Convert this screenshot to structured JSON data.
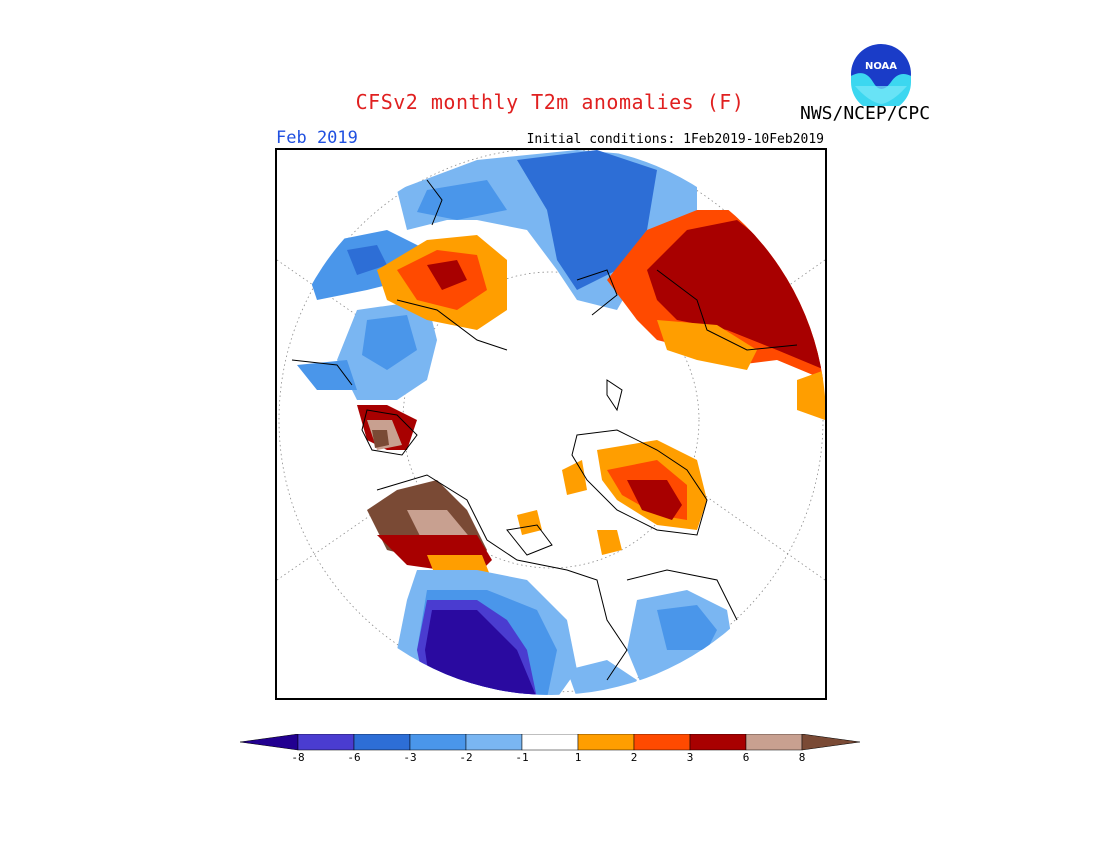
{
  "header": {
    "title": "CFSv2 monthly T2m anomalies (F)",
    "agency": "NWS/NCEP/CPC",
    "period": "Feb 2019",
    "initial_conditions": "Initial conditions: 1Feb2019-10Feb2019",
    "logo_text": "NOAA"
  },
  "colors": {
    "title": "#e02020",
    "period": "#2050e0",
    "below": [
      "#2a0aa0",
      "#4a3cd0",
      "#2d6ed6",
      "#4a96ea",
      "#7ab6f2"
    ],
    "neutral": "#ffffff",
    "above": [
      "#ff9e00",
      "#ff4a00",
      "#a80000",
      "#c8a090"
    ],
    "extreme_high": "#7a4a35",
    "extreme_low": "#220090"
  },
  "legend": {
    "ticks": [
      "-8",
      "-6",
      "-3",
      "-2",
      "-1",
      "1",
      "2",
      "3",
      "6",
      "8"
    ]
  }
}
